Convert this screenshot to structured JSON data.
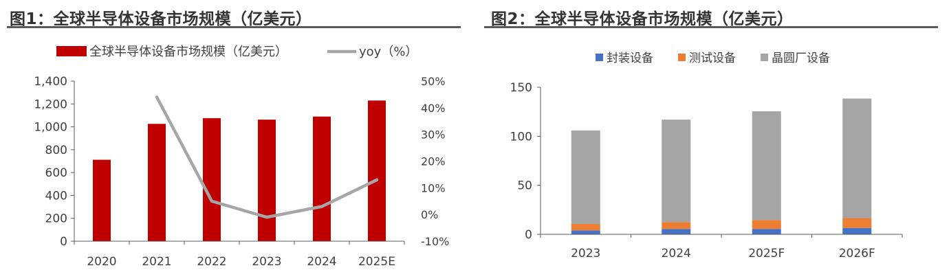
{
  "figure1": {
    "title": "图1：全球半导体设备市场规模（亿美元）",
    "chart_data": {
      "type": "bar",
      "categories": [
        "2020",
        "2021",
        "2022",
        "2023",
        "2024",
        "2025E"
      ],
      "series": [
        {
          "name": "全球半导体设备市场规模（亿美元）",
          "type": "bar",
          "axis": "left",
          "color": "#c00000",
          "values": [
            712,
            1026,
            1076,
            1063,
            1090,
            1230
          ]
        },
        {
          "name": "yoy（%）",
          "type": "line",
          "axis": "right",
          "color": "#a6a6a6",
          "values": [
            null,
            44,
            5,
            -1,
            3,
            13
          ]
        }
      ],
      "left_axis": {
        "ylim": [
          0,
          1400
        ],
        "ticks": [
          0,
          200,
          400,
          600,
          800,
          1000,
          1200,
          1400
        ],
        "tick_labels": [
          "0",
          "200",
          "400",
          "600",
          "800",
          "1,000",
          "1,200",
          "1,400"
        ]
      },
      "right_axis": {
        "ylim": [
          -10,
          50
        ],
        "ticks": [
          -10,
          0,
          10,
          20,
          30,
          40,
          50
        ],
        "tick_labels": [
          "-10%",
          "0%",
          "10%",
          "20%",
          "30%",
          "40%",
          "50%"
        ]
      },
      "grid": false,
      "legend": "top"
    }
  },
  "figure2": {
    "title": "图2：全球半导体设备市场规模（亿美元）",
    "chart_data": {
      "type": "bar",
      "stacked": true,
      "categories": [
        "2023",
        "2024",
        "2025F",
        "2026F"
      ],
      "series": [
        {
          "name": "封装设备",
          "color": "#4472c4",
          "values": [
            4,
            5.5,
            5.5,
            6.5
          ]
        },
        {
          "name": "测试设备",
          "color": "#ed7d31",
          "values": [
            6.5,
            7,
            9,
            10
          ]
        },
        {
          "name": "晶圆厂设备",
          "color": "#a5a5a5",
          "values": [
            95.5,
            104.5,
            111,
            122
          ]
        }
      ],
      "ylim": [
        0,
        150
      ],
      "ticks": [
        0,
        50,
        100,
        150
      ],
      "tick_labels": [
        "0",
        "50",
        "100",
        "150"
      ],
      "grid": false,
      "legend": "top"
    }
  }
}
